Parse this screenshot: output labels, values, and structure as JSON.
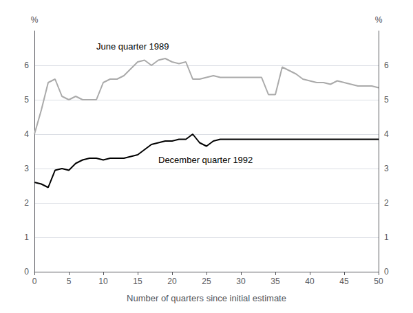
{
  "chart_data": {
    "type": "line",
    "xlabel": "Number of quarters since initial estimate",
    "ylabel": "%",
    "y2label": "%",
    "x": [
      0,
      1,
      2,
      3,
      4,
      5,
      6,
      7,
      8,
      9,
      10,
      11,
      12,
      13,
      14,
      15,
      16,
      17,
      18,
      19,
      20,
      21,
      22,
      23,
      24,
      25,
      26,
      27,
      28,
      29,
      30,
      31,
      32,
      33,
      34,
      35,
      36,
      37,
      38,
      39,
      40,
      41,
      42,
      43,
      44,
      45,
      46,
      47,
      48,
      49,
      50
    ],
    "series": [
      {
        "color": "#aaaaaa",
        "values": [
          4.0,
          4.7,
          5.5,
          5.6,
          5.1,
          5.0,
          5.1,
          5.0,
          5.0,
          5.0,
          5.5,
          5.6,
          5.6,
          5.7,
          5.9,
          6.1,
          6.15,
          6.0,
          6.15,
          6.2,
          6.1,
          6.05,
          6.1,
          5.6,
          5.6,
          5.65,
          5.7,
          5.65,
          5.65,
          5.65,
          5.65,
          5.65,
          5.65,
          5.65,
          5.15,
          5.15,
          5.95,
          5.85,
          5.75,
          5.6,
          5.55,
          5.5,
          5.5,
          5.45,
          5.55,
          5.5,
          5.45,
          5.4,
          5.4,
          5.4,
          5.35
        ]
      },
      {
        "color": "#000000",
        "values": [
          2.6,
          2.55,
          2.45,
          2.95,
          3.0,
          2.95,
          3.15,
          3.25,
          3.3,
          3.3,
          3.25,
          3.3,
          3.3,
          3.3,
          3.35,
          3.4,
          3.55,
          3.7,
          3.75,
          3.8,
          3.8,
          3.85,
          3.85,
          4.0,
          3.75,
          3.65,
          3.8,
          3.85,
          3.85,
          3.85,
          3.85,
          3.85,
          3.85,
          3.85,
          3.85,
          3.85,
          3.85,
          3.85,
          3.85,
          3.85,
          3.85,
          3.85,
          3.85,
          3.85,
          3.85,
          3.85,
          3.85,
          3.85,
          3.85,
          3.85,
          3.85
        ]
      }
    ],
    "annotations": [
      {
        "text": "June quarter 1989",
        "x": 9,
        "y": 6.55
      },
      {
        "text": "December quarter 1992",
        "x": 18,
        "y": 3.25
      }
    ],
    "xlim": [
      0,
      50
    ],
    "xticks": [
      0,
      5,
      10,
      15,
      20,
      25,
      30,
      35,
      40,
      45,
      50
    ],
    "ylim": [
      0,
      7
    ],
    "yticks": [
      0,
      1,
      2,
      3,
      4,
      5,
      6
    ],
    "y2lim": [
      0,
      7
    ],
    "y2ticks": [
      0,
      1,
      2,
      3,
      4,
      5,
      6
    ],
    "grid": true
  }
}
